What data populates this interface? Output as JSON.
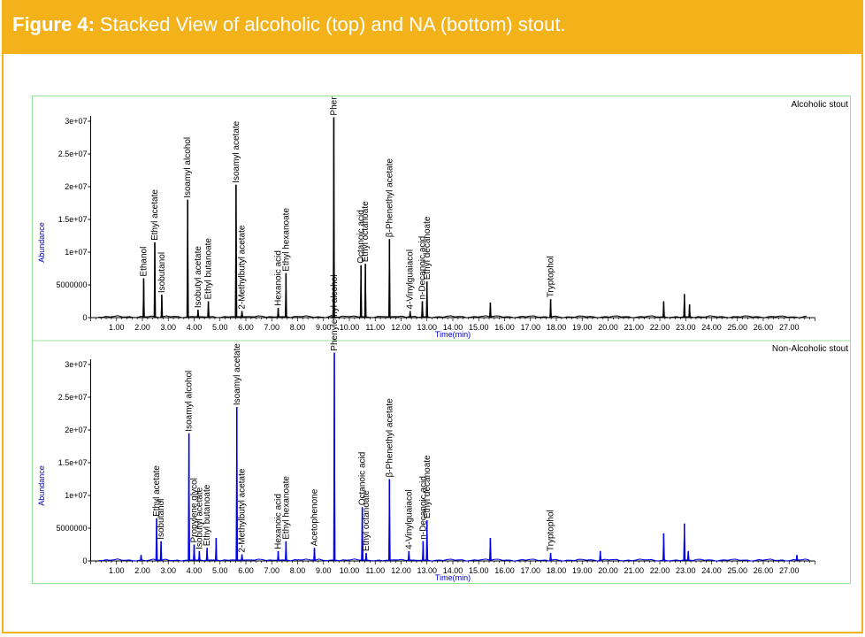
{
  "figure": {
    "label": "Figure 4:",
    "caption": "Stacked View of alcoholic (top) and NA (bottom) stout."
  },
  "colors": {
    "brand": "#f3b21a",
    "panel_border": "#98e098",
    "axis_label": "#0000cc",
    "top_trace": "#000000",
    "bottom_trace": "#0000ee"
  },
  "chart_data": [
    {
      "type": "line",
      "title": "Alcoholic stout",
      "xlabel": "Time(min)",
      "ylabel": "Abundance",
      "xlim": [
        0,
        28
      ],
      "ylim": [
        0,
        32000000
      ],
      "x_ticks": [
        "1.00",
        "2.00",
        "3.00",
        "4.00",
        "5.00",
        "6.00",
        "7.00",
        "8.00",
        "9.00",
        "10.00",
        "11.00",
        "12.00",
        "13.00",
        "14.00",
        "15.00",
        "16.00",
        "17.00",
        "18.00",
        "19.00",
        "20.00",
        "21.00",
        "22.00",
        "23.00",
        "24.00",
        "25.00",
        "26.00",
        "27.00"
      ],
      "y_ticks": [
        "0",
        "5000000",
        "1e+07",
        "1.5e+07",
        "2e+07",
        "2.5e+07",
        "3e+07"
      ],
      "peaks": [
        {
          "t": 2.05,
          "h": 6000000,
          "label": "Ethanol"
        },
        {
          "t": 2.48,
          "h": 11500000,
          "label": "Ethyl acetate"
        },
        {
          "t": 2.75,
          "h": 3500000,
          "label": "Isobutanol"
        },
        {
          "t": 3.75,
          "h": 18000000,
          "label": "Isoamyl alcohol"
        },
        {
          "t": 4.15,
          "h": 1200000,
          "label": "Isobutyl acetate"
        },
        {
          "t": 4.55,
          "h": 2500000,
          "label": "Ethyl butanoate"
        },
        {
          "t": 5.62,
          "h": 20300000,
          "label": "Isoamyl acetate"
        },
        {
          "t": 5.85,
          "h": 1000000,
          "label": "2-Methylbutyl acetate"
        },
        {
          "t": 7.25,
          "h": 1500000,
          "label": "Hexanoic acid"
        },
        {
          "t": 7.55,
          "h": 6800000,
          "label": "Ethyl hexanoate"
        },
        {
          "t": 9.4,
          "h": 30600000,
          "label": "Phenylethyl alcohol"
        },
        {
          "t": 10.45,
          "h": 8000000,
          "label": "Octanoic acid"
        },
        {
          "t": 10.62,
          "h": 8200000,
          "label": "Ethyl octanoate"
        },
        {
          "t": 11.55,
          "h": 12000000,
          "label": "β-Phenethyl acetate"
        },
        {
          "t": 12.35,
          "h": 1000000,
          "label": "4-Vinylguaiacol"
        },
        {
          "t": 12.82,
          "h": 2500000,
          "label": "n-Decanoic acid"
        },
        {
          "t": 13.0,
          "h": 5500000,
          "label": "Ethyl decanoate"
        },
        {
          "t": 17.78,
          "h": 2800000,
          "label": "Tryptophol"
        },
        {
          "t": 15.45,
          "h": 2300000,
          "label": ""
        },
        {
          "t": 22.15,
          "h": 2500000,
          "label": ""
        },
        {
          "t": 22.95,
          "h": 3600000,
          "label": ""
        },
        {
          "t": 23.15,
          "h": 2000000,
          "label": ""
        }
      ]
    },
    {
      "type": "line",
      "title": "Non-Alcoholic stout",
      "xlabel": "Time(min)",
      "ylabel": "Abundance",
      "xlim": [
        0,
        28
      ],
      "ylim": [
        0,
        32000000
      ],
      "x_ticks": [
        "1.00",
        "2.00",
        "3.00",
        "4.00",
        "5.00",
        "6.00",
        "7.00",
        "8.00",
        "9.00",
        "10.00",
        "11.00",
        "12.00",
        "13.00",
        "14.00",
        "15.00",
        "16.00",
        "17.00",
        "18.00",
        "19.00",
        "20.00",
        "21.00",
        "22.00",
        "23.00",
        "24.00",
        "25.00",
        "26.00",
        "27.00"
      ],
      "y_ticks": [
        "0",
        "5000000",
        "1e+07",
        "1.5e+07",
        "2e+07",
        "2.5e+07",
        "3e+07"
      ],
      "peaks": [
        {
          "t": 2.55,
          "h": 6500000,
          "label": "Ethyl acetate"
        },
        {
          "t": 2.72,
          "h": 3000000,
          "label": "Isobutanol"
        },
        {
          "t": 3.8,
          "h": 19500000,
          "label": "Isoamyl alcohol"
        },
        {
          "t": 4.0,
          "h": 2500000,
          "label": "Propylene glycol"
        },
        {
          "t": 4.2,
          "h": 1500000,
          "label": "Isobutyl acetate"
        },
        {
          "t": 4.5,
          "h": 2000000,
          "label": "Ethyl butanoate"
        },
        {
          "t": 5.65,
          "h": 23500000,
          "label": "Isoamyl acetate"
        },
        {
          "t": 5.85,
          "h": 1000000,
          "label": "2-Methylbutyl acetate"
        },
        {
          "t": 7.25,
          "h": 1500000,
          "label": "Hexanoic acid"
        },
        {
          "t": 7.55,
          "h": 3000000,
          "label": "Ethyl hexanoate"
        },
        {
          "t": 8.65,
          "h": 2000000,
          "label": "Acetophenone"
        },
        {
          "t": 9.42,
          "h": 31800000,
          "label": "Phenylethyl alcohol"
        },
        {
          "t": 10.5,
          "h": 8200000,
          "label": "Octanoic acid"
        },
        {
          "t": 10.65,
          "h": 1200000,
          "label": "Ethyl octanoate"
        },
        {
          "t": 11.55,
          "h": 12500000,
          "label": "β-Phenethyl acetate"
        },
        {
          "t": 12.3,
          "h": 1500000,
          "label": "4-Vinylguaiacol"
        },
        {
          "t": 12.85,
          "h": 3000000,
          "label": "n-Decanoic acid"
        },
        {
          "t": 13.0,
          "h": 6200000,
          "label": "Ethyl decanoate"
        },
        {
          "t": 17.78,
          "h": 1200000,
          "label": "Tryptophol"
        },
        {
          "t": 1.95,
          "h": 900000,
          "label": ""
        },
        {
          "t": 4.85,
          "h": 3500000,
          "label": ""
        },
        {
          "t": 15.45,
          "h": 3500000,
          "label": ""
        },
        {
          "t": 19.7,
          "h": 1500000,
          "label": ""
        },
        {
          "t": 22.15,
          "h": 4200000,
          "label": ""
        },
        {
          "t": 22.95,
          "h": 5700000,
          "label": ""
        },
        {
          "t": 23.1,
          "h": 1500000,
          "label": ""
        },
        {
          "t": 27.3,
          "h": 900000,
          "label": ""
        }
      ]
    }
  ]
}
